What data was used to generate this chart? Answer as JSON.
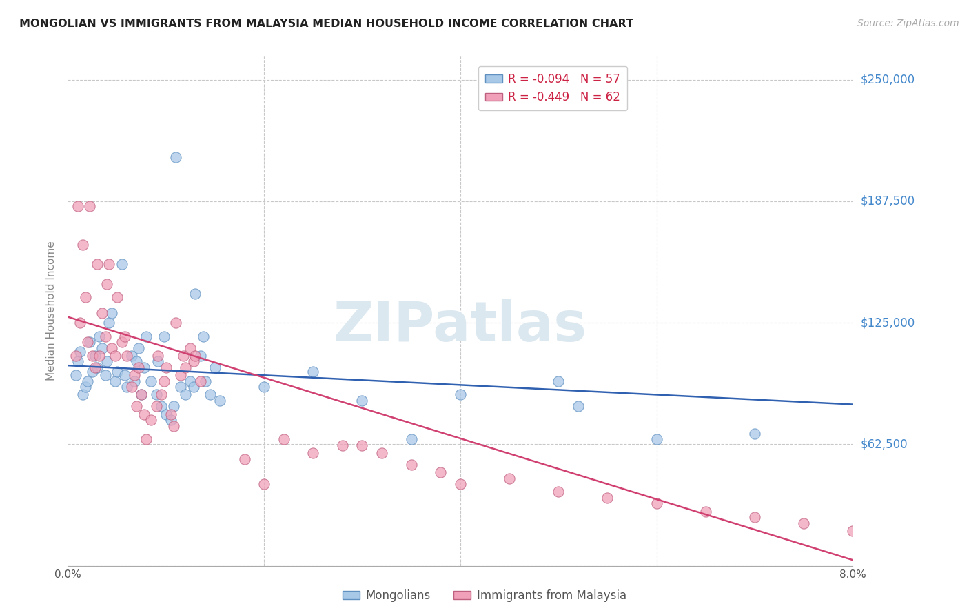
{
  "title": "MONGOLIAN VS IMMIGRANTS FROM MALAYSIA MEDIAN HOUSEHOLD INCOME CORRELATION CHART",
  "source": "Source: ZipAtlas.com",
  "ylabel": "Median Household Income",
  "xlim": [
    0.0,
    0.08
  ],
  "ylim": [
    0,
    262500
  ],
  "background_color": "#ffffff",
  "grid_color": "#c8c8c8",
  "watermark_text": "ZIPatlas",
  "watermark_color": "#dce8f0",
  "series_mongolian": {
    "color": "#a8c8e8",
    "edge_color": "#6090c0",
    "trend_color": "#3060b0",
    "R": -0.094,
    "N": 57,
    "intercept": 103000,
    "slope": -250000
  },
  "series_malaysia": {
    "color": "#f0a0b8",
    "edge_color": "#c06080",
    "trend_color": "#d04070",
    "R": -0.449,
    "N": 62,
    "intercept": 128000,
    "slope": -1562500
  },
  "ytick_color": "#4488cc",
  "axis_label_color": "#888888",
  "title_color": "#222222",
  "legend_label_color": "#cc2244",
  "bottom_legend_color": "#555555",
  "mongolian_points": [
    [
      0.0008,
      98000
    ],
    [
      0.001,
      105000
    ],
    [
      0.0012,
      110000
    ],
    [
      0.0015,
      88000
    ],
    [
      0.0018,
      92000
    ],
    [
      0.002,
      95000
    ],
    [
      0.0022,
      115000
    ],
    [
      0.0025,
      100000
    ],
    [
      0.0028,
      108000
    ],
    [
      0.003,
      102000
    ],
    [
      0.0032,
      118000
    ],
    [
      0.0035,
      112000
    ],
    [
      0.0038,
      98000
    ],
    [
      0.004,
      105000
    ],
    [
      0.0042,
      125000
    ],
    [
      0.0045,
      130000
    ],
    [
      0.0048,
      95000
    ],
    [
      0.005,
      100000
    ],
    [
      0.0055,
      155000
    ],
    [
      0.0058,
      98000
    ],
    [
      0.006,
      92000
    ],
    [
      0.0065,
      108000
    ],
    [
      0.0068,
      95000
    ],
    [
      0.007,
      105000
    ],
    [
      0.0072,
      112000
    ],
    [
      0.0075,
      88000
    ],
    [
      0.0078,
      102000
    ],
    [
      0.008,
      118000
    ],
    [
      0.0085,
      95000
    ],
    [
      0.009,
      88000
    ],
    [
      0.0092,
      105000
    ],
    [
      0.0095,
      82000
    ],
    [
      0.0098,
      118000
    ],
    [
      0.01,
      78000
    ],
    [
      0.0105,
      75000
    ],
    [
      0.0108,
      82000
    ],
    [
      0.011,
      210000
    ],
    [
      0.0115,
      92000
    ],
    [
      0.012,
      88000
    ],
    [
      0.0125,
      95000
    ],
    [
      0.0128,
      92000
    ],
    [
      0.013,
      140000
    ],
    [
      0.0135,
      108000
    ],
    [
      0.0138,
      118000
    ],
    [
      0.014,
      95000
    ],
    [
      0.0145,
      88000
    ],
    [
      0.015,
      102000
    ],
    [
      0.0155,
      85000
    ],
    [
      0.02,
      92000
    ],
    [
      0.025,
      100000
    ],
    [
      0.03,
      85000
    ],
    [
      0.035,
      65000
    ],
    [
      0.04,
      88000
    ],
    [
      0.05,
      95000
    ],
    [
      0.052,
      82000
    ],
    [
      0.06,
      65000
    ],
    [
      0.07,
      68000
    ]
  ],
  "malaysia_points": [
    [
      0.0008,
      108000
    ],
    [
      0.001,
      185000
    ],
    [
      0.0012,
      125000
    ],
    [
      0.0015,
      165000
    ],
    [
      0.0018,
      138000
    ],
    [
      0.002,
      115000
    ],
    [
      0.0022,
      185000
    ],
    [
      0.0025,
      108000
    ],
    [
      0.0028,
      102000
    ],
    [
      0.003,
      155000
    ],
    [
      0.0032,
      108000
    ],
    [
      0.0035,
      130000
    ],
    [
      0.0038,
      118000
    ],
    [
      0.004,
      145000
    ],
    [
      0.0042,
      155000
    ],
    [
      0.0045,
      112000
    ],
    [
      0.0048,
      108000
    ],
    [
      0.005,
      138000
    ],
    [
      0.0055,
      115000
    ],
    [
      0.0058,
      118000
    ],
    [
      0.006,
      108000
    ],
    [
      0.0065,
      92000
    ],
    [
      0.0068,
      98000
    ],
    [
      0.007,
      82000
    ],
    [
      0.0072,
      102000
    ],
    [
      0.0075,
      88000
    ],
    [
      0.0078,
      78000
    ],
    [
      0.008,
      65000
    ],
    [
      0.0085,
      75000
    ],
    [
      0.009,
      82000
    ],
    [
      0.0092,
      108000
    ],
    [
      0.0095,
      88000
    ],
    [
      0.0098,
      95000
    ],
    [
      0.01,
      102000
    ],
    [
      0.0105,
      78000
    ],
    [
      0.0108,
      72000
    ],
    [
      0.011,
      125000
    ],
    [
      0.0115,
      98000
    ],
    [
      0.0118,
      108000
    ],
    [
      0.012,
      102000
    ],
    [
      0.0125,
      112000
    ],
    [
      0.0128,
      105000
    ],
    [
      0.013,
      108000
    ],
    [
      0.0135,
      95000
    ],
    [
      0.018,
      55000
    ],
    [
      0.02,
      42000
    ],
    [
      0.022,
      65000
    ],
    [
      0.025,
      58000
    ],
    [
      0.028,
      62000
    ],
    [
      0.03,
      62000
    ],
    [
      0.032,
      58000
    ],
    [
      0.035,
      52000
    ],
    [
      0.038,
      48000
    ],
    [
      0.04,
      42000
    ],
    [
      0.045,
      45000
    ],
    [
      0.05,
      38000
    ],
    [
      0.055,
      35000
    ],
    [
      0.06,
      32000
    ],
    [
      0.065,
      28000
    ],
    [
      0.07,
      25000
    ],
    [
      0.075,
      22000
    ],
    [
      0.08,
      18000
    ]
  ],
  "point_size": 120,
  "point_alpha": 0.75,
  "trend_linewidth": 1.8
}
